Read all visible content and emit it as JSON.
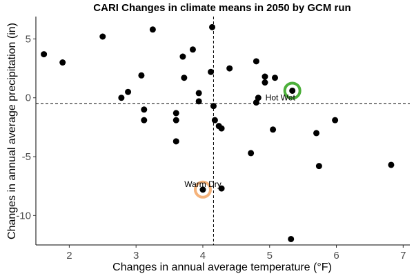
{
  "chart_data": {
    "type": "scatter",
    "title": "CARI Changes in climate means in 2050 by GCM run",
    "xlabel": "Changes in annual average temperature (°F)",
    "ylabel": "Changes in annual average precipitation (in)",
    "xlim": [
      1.5,
      7.1
    ],
    "ylim": [
      -12.5,
      6.9
    ],
    "x_ticks": [
      2,
      3,
      4,
      5,
      6,
      7
    ],
    "y_ticks": [
      5,
      0,
      -5,
      -10
    ],
    "x_tick_labels": [
      "2",
      "3",
      "4",
      "5",
      "6",
      "7"
    ],
    "y_tick_labels": [
      "5",
      "0",
      "-5",
      "-10"
    ],
    "grid": false,
    "points": [
      {
        "x": 1.62,
        "y": 3.7
      },
      {
        "x": 1.9,
        "y": 3.0
      },
      {
        "x": 2.5,
        "y": 5.2
      },
      {
        "x": 2.78,
        "y": 0.0
      },
      {
        "x": 2.88,
        "y": 0.5
      },
      {
        "x": 3.08,
        "y": 1.9
      },
      {
        "x": 3.12,
        "y": -1.0
      },
      {
        "x": 3.12,
        "y": -1.9
      },
      {
        "x": 3.25,
        "y": 5.8
      },
      {
        "x": 3.6,
        "y": -1.3
      },
      {
        "x": 3.6,
        "y": -1.9
      },
      {
        "x": 3.6,
        "y": -3.7
      },
      {
        "x": 3.7,
        "y": 3.5
      },
      {
        "x": 3.72,
        "y": 1.7
      },
      {
        "x": 3.85,
        "y": 4.1
      },
      {
        "x": 3.94,
        "y": 0.4
      },
      {
        "x": 3.94,
        "y": -0.3
      },
      {
        "x": 4.0,
        "y": -7.8
      },
      {
        "x": 4.12,
        "y": 2.2
      },
      {
        "x": 4.14,
        "y": 6.0
      },
      {
        "x": 4.16,
        "y": -0.7
      },
      {
        "x": 4.18,
        "y": -1.9
      },
      {
        "x": 4.24,
        "y": -2.4
      },
      {
        "x": 4.28,
        "y": -2.6
      },
      {
        "x": 4.28,
        "y": -7.7
      },
      {
        "x": 4.4,
        "y": 2.5
      },
      {
        "x": 4.72,
        "y": -4.7
      },
      {
        "x": 4.8,
        "y": 3.1
      },
      {
        "x": 4.8,
        "y": -0.4
      },
      {
        "x": 4.83,
        "y": 0.0
      },
      {
        "x": 4.93,
        "y": 1.8
      },
      {
        "x": 4.93,
        "y": 1.3
      },
      {
        "x": 5.05,
        "y": -2.7
      },
      {
        "x": 5.08,
        "y": 1.7
      },
      {
        "x": 5.32,
        "y": -12.0
      },
      {
        "x": 5.34,
        "y": 0.6
      },
      {
        "x": 5.7,
        "y": -3.0
      },
      {
        "x": 5.74,
        "y": -5.8
      },
      {
        "x": 5.98,
        "y": -1.9
      },
      {
        "x": 6.82,
        "y": -5.7
      }
    ],
    "reference_lines": {
      "vertical_x": 4.16,
      "horizontal_y": -0.5
    },
    "highlights": [
      {
        "label": "Hot Wet",
        "x": 5.34,
        "y": 0.6,
        "color": "#4caf3a",
        "label_position": "below-left"
      },
      {
        "label": "Warm Dry",
        "x": 4.0,
        "y": -7.8,
        "color": "#f5b27a",
        "label_position": "above"
      }
    ],
    "colors": {
      "points": "#000000",
      "reference_line": "#000000",
      "axis": "#000000",
      "tick_label": "#4d4d4d"
    }
  }
}
